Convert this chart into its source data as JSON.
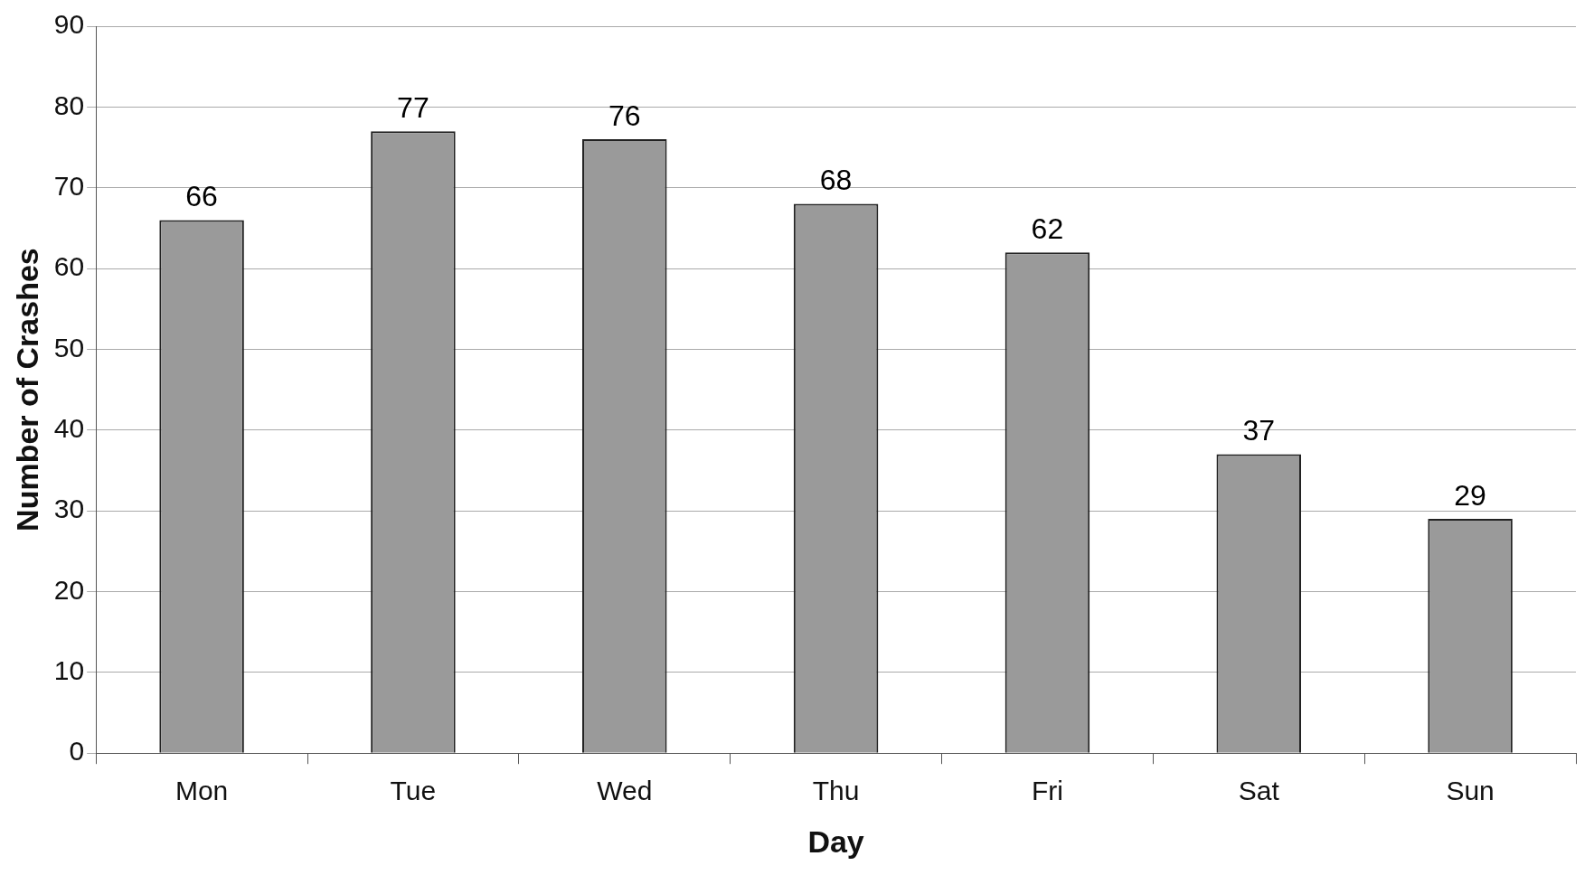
{
  "chart_data": {
    "type": "bar",
    "xlabel": "Day",
    "ylabel": "Number of Crashes",
    "categories": [
      "Mon",
      "Tue",
      "Wed",
      "Thu",
      "Fri",
      "Sat",
      "Sun"
    ],
    "values": [
      66,
      77,
      76,
      68,
      62,
      37,
      29
    ],
    "color": "#9a9a9a",
    "ylim": [
      0,
      90
    ],
    "yticks": [
      0,
      10,
      20,
      30,
      40,
      50,
      60,
      70,
      80,
      90
    ],
    "grid": "y",
    "data_labels": true,
    "legend": false
  }
}
